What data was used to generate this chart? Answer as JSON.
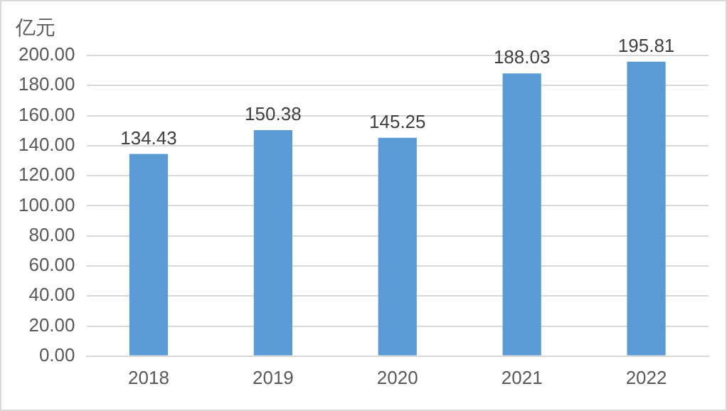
{
  "chart_data": {
    "type": "bar",
    "ylabel": "亿元",
    "categories": [
      "2018",
      "2019",
      "2020",
      "2021",
      "2022"
    ],
    "values": [
      134.43,
      150.38,
      145.25,
      188.03,
      195.81
    ],
    "color": "#5b9bd5",
    "ylim": [
      0,
      200
    ],
    "yticks": [
      {
        "value": 0,
        "label": "0.00"
      },
      {
        "value": 20,
        "label": "20.00"
      },
      {
        "value": 40,
        "label": "40.00"
      },
      {
        "value": 60,
        "label": "60.00"
      },
      {
        "value": 80,
        "label": "80.00"
      },
      {
        "value": 100,
        "label": "100.00"
      },
      {
        "value": 120,
        "label": "120.00"
      },
      {
        "value": 140,
        "label": "140.00"
      },
      {
        "value": 160,
        "label": "160.00"
      },
      {
        "value": 180,
        "label": "180.00"
      },
      {
        "value": 200,
        "label": "200.00"
      }
    ],
    "grid": "y",
    "data_labels": true,
    "legend": false
  }
}
